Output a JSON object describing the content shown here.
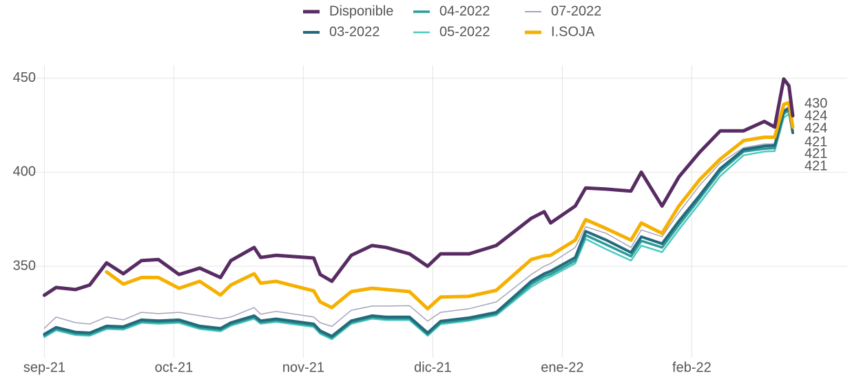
{
  "chart_data": {
    "type": "line",
    "xlim": [
      -0.13,
      6.2
    ],
    "xticks": [
      {
        "value": 0,
        "label": "sep-21"
      },
      {
        "value": 1,
        "label": "oct-21"
      },
      {
        "value": 2,
        "label": "nov-21"
      },
      {
        "value": 3,
        "label": "dic-21"
      },
      {
        "value": 4,
        "label": "ene-22"
      },
      {
        "value": 5,
        "label": "feb-22"
      }
    ],
    "ylim": [
      305,
      455
    ],
    "yticks": [
      350,
      400,
      450
    ],
    "grid": true,
    "legend": "top",
    "x": [
      0,
      0.09,
      0.24,
      0.35,
      0.48,
      0.61,
      0.75,
      0.88,
      1.04,
      1.2,
      1.36,
      1.44,
      1.62,
      1.67,
      1.79,
      2.08,
      2.13,
      2.22,
      2.37,
      2.53,
      2.64,
      2.82,
      2.96,
      3.06,
      3.28,
      3.49,
      3.76,
      3.86,
      3.91,
      4.1,
      4.18,
      4.34,
      4.53,
      4.61,
      4.77,
      4.9,
      5.06,
      5.22,
      5.4,
      5.56,
      5.64,
      5.71,
      5.75,
      5.78
    ],
    "series": [
      {
        "name": "Disponible",
        "color": "#582c63",
        "width": 5,
        "values": [
          334.6,
          338.7,
          337.6,
          340,
          351.8,
          346,
          353,
          353.6,
          345.6,
          349,
          344,
          353,
          360,
          354.7,
          355.8,
          354.4,
          345.6,
          342,
          355.8,
          361,
          360,
          356.6,
          350,
          356.6,
          356.6,
          361,
          375.5,
          379,
          373,
          382,
          391.6,
          391,
          390,
          400,
          382,
          397.5,
          410.6,
          422,
          422,
          427,
          424,
          449.6,
          446,
          430
        ],
        "value_labels": [
          null,
          null,
          null,
          null,
          null,
          null,
          null,
          null,
          null,
          null,
          null,
          null,
          null,
          null,
          null,
          null,
          null,
          null,
          null,
          null,
          null,
          null,
          null,
          null,
          null,
          null,
          null,
          null,
          null,
          null,
          null,
          null,
          null,
          null,
          null,
          null,
          null,
          null,
          null,
          null,
          null,
          null,
          null,
          "430"
        ]
      },
      {
        "name": "03-2022",
        "color": "#236a7c",
        "width": 4,
        "values": [
          313.9,
          317.5,
          315,
          314.6,
          318.2,
          317.9,
          321.5,
          321,
          321.5,
          318.2,
          317,
          320,
          323.7,
          321,
          322,
          319.3,
          315.7,
          312.8,
          321,
          323.7,
          323,
          323,
          314.6,
          320.8,
          322.6,
          325.5,
          342,
          346,
          347.4,
          354.7,
          368.6,
          363.9,
          357.3,
          365.7,
          362,
          374,
          387.6,
          402,
          412,
          413.9,
          414.2,
          432.5,
          434,
          421
        ],
        "value_labels": [
          null,
          null,
          null,
          null,
          null,
          null,
          null,
          null,
          null,
          null,
          null,
          null,
          null,
          null,
          null,
          null,
          null,
          null,
          null,
          null,
          null,
          null,
          null,
          null,
          null,
          null,
          null,
          null,
          null,
          null,
          null,
          null,
          null,
          null,
          null,
          null,
          null,
          null,
          null,
          null,
          null,
          null,
          null,
          "421"
        ]
      },
      {
        "name": "04-2022",
        "color": "#2a9d99",
        "width": 3.5,
        "values": [
          313.1,
          316.7,
          314.2,
          313.8,
          317.4,
          317.1,
          320.7,
          320.2,
          320.7,
          317.4,
          316.2,
          319.2,
          322.9,
          320.2,
          321.2,
          318.5,
          314.9,
          312,
          320.2,
          322.9,
          322.2,
          322.2,
          313.8,
          320,
          321.8,
          324.7,
          340.5,
          344.5,
          345.8,
          353,
          366.5,
          361.5,
          355.3,
          363.5,
          360,
          372,
          386,
          400.5,
          411,
          412.5,
          412.8,
          431,
          433,
          421
        ],
        "value_labels": [
          null,
          null,
          null,
          null,
          null,
          null,
          null,
          null,
          null,
          null,
          null,
          null,
          null,
          null,
          null,
          null,
          null,
          null,
          null,
          null,
          null,
          null,
          null,
          null,
          null,
          null,
          null,
          null,
          null,
          null,
          null,
          null,
          null,
          null,
          null,
          null,
          null,
          null,
          null,
          null,
          null,
          null,
          null,
          "421"
        ]
      },
      {
        "name": "05-2022",
        "color": "#4cc9c0",
        "width": 2.5,
        "values": [
          312.3,
          315.9,
          313.4,
          313,
          316.6,
          316.3,
          319.9,
          319.4,
          319.9,
          316.6,
          315.4,
          318.4,
          322.1,
          319.4,
          320.4,
          317.7,
          314.1,
          311.2,
          319.4,
          322.1,
          321.4,
          321.4,
          313,
          319.2,
          321,
          323.9,
          339,
          343,
          344.5,
          351.5,
          364.5,
          359,
          353,
          361,
          357.5,
          369.5,
          383.5,
          398,
          409,
          411,
          411.2,
          429,
          431,
          421
        ],
        "value_labels": [
          null,
          null,
          null,
          null,
          null,
          null,
          null,
          null,
          null,
          null,
          null,
          null,
          null,
          null,
          null,
          null,
          null,
          null,
          null,
          null,
          null,
          null,
          null,
          null,
          null,
          null,
          null,
          null,
          null,
          null,
          null,
          null,
          null,
          null,
          null,
          null,
          null,
          null,
          null,
          null,
          null,
          null,
          null,
          "421"
        ]
      },
      {
        "name": "07-2022",
        "color": "#a6a3bb",
        "width": 1.5,
        "label_color": "#54497a",
        "values": [
          317,
          323,
          320,
          319.3,
          323,
          321.5,
          325.5,
          324.8,
          325.5,
          323.7,
          322,
          323,
          328,
          324.5,
          326,
          323,
          320,
          318,
          326.6,
          328.8,
          328.8,
          329,
          320.8,
          325.5,
          327.4,
          331,
          345.6,
          350,
          351.5,
          360,
          371,
          367.5,
          360,
          369.3,
          365.7,
          378.5,
          393,
          405,
          413,
          415,
          415,
          433,
          435,
          424
        ],
        "value_labels": [
          null,
          null,
          null,
          null,
          null,
          null,
          null,
          null,
          null,
          null,
          null,
          null,
          null,
          null,
          null,
          null,
          null,
          null,
          null,
          null,
          null,
          null,
          null,
          null,
          null,
          null,
          null,
          null,
          null,
          null,
          null,
          null,
          null,
          null,
          null,
          null,
          null,
          null,
          null,
          null,
          null,
          null,
          null,
          "424"
        ]
      },
      {
        "name": "I.SOJA",
        "color": "#f5b000",
        "width": 5,
        "values": [
          null,
          null,
          null,
          null,
          347,
          340.5,
          344,
          344,
          338.3,
          342,
          334.7,
          340,
          346,
          341,
          342,
          336.9,
          331,
          328,
          336.5,
          338.3,
          337.6,
          336.5,
          327.4,
          333.6,
          334,
          337.2,
          353.6,
          355.5,
          355.8,
          363.9,
          374.8,
          370,
          363.9,
          373,
          367.5,
          382,
          396,
          407,
          416.8,
          418.6,
          418.6,
          436,
          437,
          424
        ],
        "value_labels": [
          null,
          null,
          null,
          null,
          null,
          null,
          null,
          null,
          null,
          null,
          null,
          null,
          null,
          null,
          null,
          null,
          null,
          null,
          null,
          null,
          null,
          null,
          null,
          null,
          null,
          null,
          null,
          null,
          null,
          null,
          null,
          null,
          null,
          null,
          null,
          null,
          null,
          null,
          null,
          null,
          null,
          null,
          null,
          "424"
        ]
      }
    ]
  }
}
